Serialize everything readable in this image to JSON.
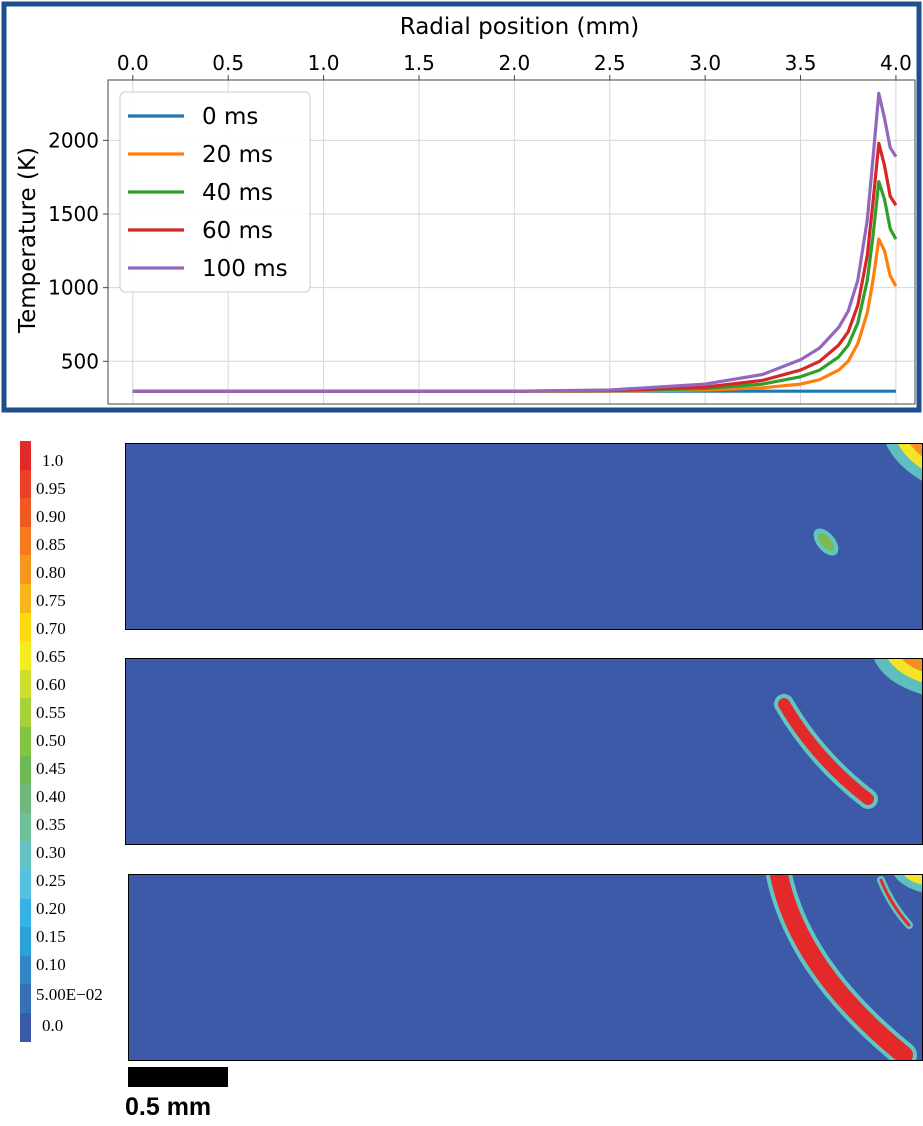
{
  "chart_data": {
    "type": "line",
    "xlabel": "Radial position (mm)",
    "ylabel": "Temperature (K)",
    "xlim": [
      -0.13,
      4.1
    ],
    "ylim": [
      210,
      2410
    ],
    "xticks": [
      "0.0",
      "0.5",
      "1.0",
      "1.5",
      "2.0",
      "2.5",
      "3.0",
      "3.5",
      "4.0"
    ],
    "yticks": [
      "500",
      "1000",
      "1500",
      "2000"
    ],
    "x_axis_position": "top",
    "grid": true,
    "legend_position": "top-left",
    "series": [
      {
        "name": "0 ms",
        "color": "#1f77b4",
        "x": [
          0.0,
          1.0,
          2.0,
          3.0,
          3.5,
          3.8,
          3.9,
          4.0
        ],
        "y": [
          297,
          297,
          297,
          297,
          297,
          297,
          297,
          297
        ]
      },
      {
        "name": "20 ms",
        "color": "#ff7f0e",
        "x": [
          0.0,
          1.0,
          2.0,
          2.5,
          3.0,
          3.3,
          3.5,
          3.6,
          3.7,
          3.75,
          3.8,
          3.85,
          3.88,
          3.91,
          3.94,
          3.97,
          4.0
        ],
        "y": [
          297,
          297,
          297,
          298,
          305,
          320,
          345,
          375,
          440,
          500,
          620,
          830,
          1050,
          1330,
          1250,
          1080,
          1010
        ]
      },
      {
        "name": "40 ms",
        "color": "#2ca02c",
        "x": [
          0.0,
          1.0,
          2.0,
          2.5,
          3.0,
          3.3,
          3.5,
          3.6,
          3.7,
          3.75,
          3.8,
          3.85,
          3.88,
          3.91,
          3.94,
          3.97,
          4.0
        ],
        "y": [
          297,
          297,
          297,
          300,
          315,
          345,
          395,
          440,
          530,
          610,
          760,
          1050,
          1350,
          1720,
          1600,
          1400,
          1330
        ]
      },
      {
        "name": "60 ms",
        "color": "#d62728",
        "x": [
          0.0,
          1.0,
          2.0,
          2.5,
          3.0,
          3.3,
          3.5,
          3.6,
          3.7,
          3.75,
          3.8,
          3.85,
          3.88,
          3.91,
          3.94,
          3.97,
          4.0
        ],
        "y": [
          297,
          297,
          297,
          302,
          325,
          370,
          440,
          500,
          610,
          700,
          880,
          1220,
          1580,
          1980,
          1830,
          1620,
          1560
        ]
      },
      {
        "name": "100 ms",
        "color": "#9467bd",
        "x": [
          0.0,
          1.0,
          2.0,
          2.5,
          3.0,
          3.3,
          3.5,
          3.6,
          3.7,
          3.75,
          3.8,
          3.85,
          3.88,
          3.91,
          3.94,
          3.97,
          4.0
        ],
        "y": [
          297,
          297,
          297,
          305,
          345,
          410,
          510,
          590,
          730,
          840,
          1050,
          1460,
          1880,
          2320,
          2150,
          1950,
          1890
        ]
      }
    ]
  },
  "colorbar": {
    "labels": [
      "1.0",
      "0.95",
      "0.90",
      "0.85",
      "0.80",
      "0.75",
      "0.70",
      "0.65",
      "0.60",
      "0.55",
      "0.50",
      "0.45",
      "0.40",
      "0.35",
      "0.30",
      "0.25",
      "0.20",
      "0.15",
      "0.10",
      "5.00E−02",
      "0.0"
    ],
    "colors": [
      "#e4292b",
      "#ec3f26",
      "#f05a22",
      "#f57a20",
      "#f6961e",
      "#f8b51a",
      "#fcd80d",
      "#f4ec22",
      "#cfde2d",
      "#a8d03a",
      "#84c444",
      "#6cb955",
      "#6db87a",
      "#6fbf9b",
      "#64c2c2",
      "#56c0e0",
      "#35b3e6",
      "#2aa1d9",
      "#3187c6",
      "#3670b6",
      "#3b5ba6"
    ]
  },
  "scale_bar": {
    "label": "0.5 mm"
  }
}
